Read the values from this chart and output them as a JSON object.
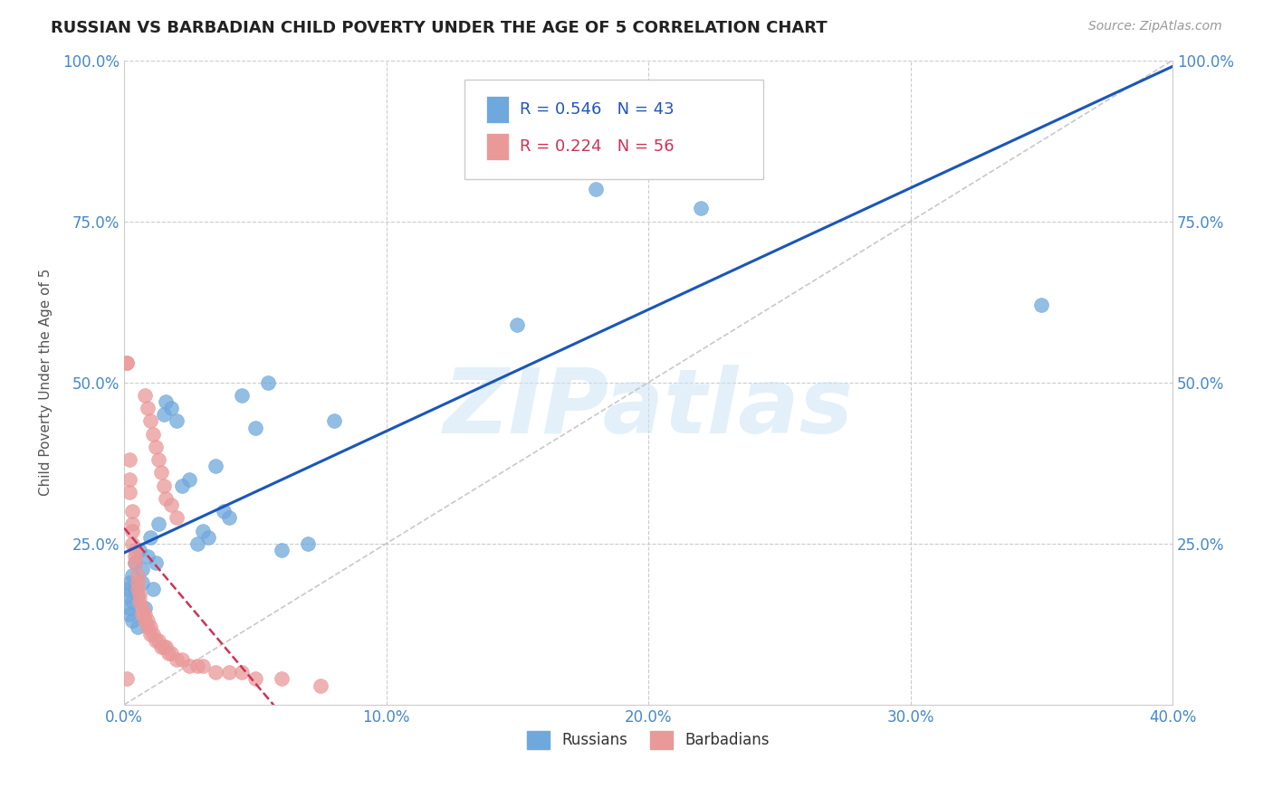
{
  "title": "RUSSIAN VS BARBADIAN CHILD POVERTY UNDER THE AGE OF 5 CORRELATION CHART",
  "source": "Source: ZipAtlas.com",
  "xlabel_ticks": [
    "0.0%",
    "10.0%",
    "20.0%",
    "30.0%",
    "40.0%"
  ],
  "xlabel_tick_vals": [
    0.0,
    0.1,
    0.2,
    0.3,
    0.4
  ],
  "ylabel": "Child Poverty Under the Age of 5",
  "xlim": [
    0.0,
    0.4
  ],
  "ylim": [
    0.0,
    1.0
  ],
  "russian_color": "#6fa8dc",
  "barbadian_color": "#ea9999",
  "russian_line_color": "#1a56bb",
  "barbadian_line_color": "#cc3355",
  "russian_R": 0.546,
  "russian_N": 43,
  "barbadian_R": 0.224,
  "barbadian_N": 56,
  "watermark": "ZIPatlas",
  "russian_x": [
    0.001,
    0.001,
    0.002,
    0.002,
    0.002,
    0.003,
    0.003,
    0.003,
    0.004,
    0.004,
    0.005,
    0.005,
    0.006,
    0.007,
    0.007,
    0.008,
    0.009,
    0.01,
    0.011,
    0.012,
    0.013,
    0.015,
    0.016,
    0.018,
    0.02,
    0.022,
    0.025,
    0.028,
    0.03,
    0.032,
    0.035,
    0.038,
    0.04,
    0.045,
    0.05,
    0.055,
    0.06,
    0.07,
    0.08,
    0.15,
    0.18,
    0.22,
    0.35
  ],
  "russian_y": [
    0.18,
    0.17,
    0.19,
    0.15,
    0.14,
    0.2,
    0.16,
    0.13,
    0.22,
    0.18,
    0.17,
    0.12,
    0.24,
    0.21,
    0.19,
    0.15,
    0.23,
    0.26,
    0.18,
    0.22,
    0.28,
    0.45,
    0.47,
    0.46,
    0.44,
    0.34,
    0.35,
    0.25,
    0.27,
    0.26,
    0.37,
    0.3,
    0.29,
    0.48,
    0.43,
    0.5,
    0.24,
    0.25,
    0.44,
    0.59,
    0.8,
    0.77,
    0.62
  ],
  "barbadian_x": [
    0.001,
    0.001,
    0.001,
    0.002,
    0.002,
    0.002,
    0.003,
    0.003,
    0.003,
    0.003,
    0.004,
    0.004,
    0.004,
    0.005,
    0.005,
    0.005,
    0.006,
    0.006,
    0.007,
    0.007,
    0.008,
    0.008,
    0.009,
    0.009,
    0.01,
    0.01,
    0.011,
    0.012,
    0.013,
    0.014,
    0.015,
    0.016,
    0.017,
    0.018,
    0.02,
    0.022,
    0.025,
    0.028,
    0.03,
    0.035,
    0.04,
    0.045,
    0.05,
    0.06,
    0.075,
    0.008,
    0.009,
    0.01,
    0.011,
    0.012,
    0.013,
    0.014,
    0.015,
    0.016,
    0.018,
    0.02
  ],
  "barbadian_y": [
    0.53,
    0.53,
    0.04,
    0.38,
    0.35,
    0.33,
    0.3,
    0.28,
    0.27,
    0.25,
    0.24,
    0.23,
    0.22,
    0.2,
    0.19,
    0.18,
    0.17,
    0.16,
    0.15,
    0.14,
    0.14,
    0.13,
    0.13,
    0.12,
    0.12,
    0.11,
    0.11,
    0.1,
    0.1,
    0.09,
    0.09,
    0.09,
    0.08,
    0.08,
    0.07,
    0.07,
    0.06,
    0.06,
    0.06,
    0.05,
    0.05,
    0.05,
    0.04,
    0.04,
    0.03,
    0.48,
    0.46,
    0.44,
    0.42,
    0.4,
    0.38,
    0.36,
    0.34,
    0.32,
    0.31,
    0.29
  ],
  "background_color": "#ffffff",
  "grid_color": "#cccccc"
}
